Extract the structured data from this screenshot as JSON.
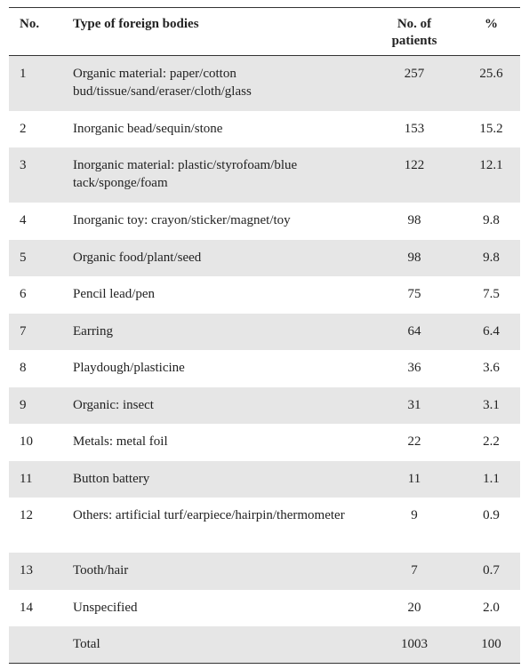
{
  "table": {
    "header": [
      "No.",
      "Type of foreign bodies",
      "No. of patients",
      "%"
    ],
    "rows": [
      [
        "1",
        "Organic material: paper/cotton bud/tissue/sand/eraser/cloth/glass",
        "257",
        "25.6"
      ],
      [
        "2",
        "Inorganic bead/sequin/stone",
        "153",
        "15.2"
      ],
      [
        "3",
        "Inorganic material: plastic/styrofoam/blue tack/sponge/foam",
        "122",
        "12.1"
      ],
      [
        "4",
        "Inorganic toy: crayon/sticker/magnet/toy",
        "98",
        "9.8"
      ],
      [
        "5",
        "Organic food/plant/seed",
        "98",
        "9.8"
      ],
      [
        "6",
        "Pencil lead/pen",
        "75",
        "7.5"
      ],
      [
        "7",
        "Earring",
        "64",
        "6.4"
      ],
      [
        "8",
        "Playdough/plasticine",
        "36",
        "3.6"
      ],
      [
        "9",
        "Organic: insect",
        "31",
        "3.1"
      ],
      [
        "10",
        "Metals: metal foil",
        "22",
        "2.2"
      ],
      [
        "11",
        "Button battery",
        "11",
        "1.1"
      ],
      [
        "12",
        "Others: artificial turf/earpiece/hairpin/thermometer",
        "9",
        "0.9"
      ],
      [
        "13",
        "Tooth/hair",
        "7",
        "0.7"
      ],
      [
        "14",
        "Unspecified",
        "20",
        "2.0"
      ]
    ],
    "total": {
      "label": "Total",
      "patients": "1003",
      "percent": "100"
    }
  }
}
